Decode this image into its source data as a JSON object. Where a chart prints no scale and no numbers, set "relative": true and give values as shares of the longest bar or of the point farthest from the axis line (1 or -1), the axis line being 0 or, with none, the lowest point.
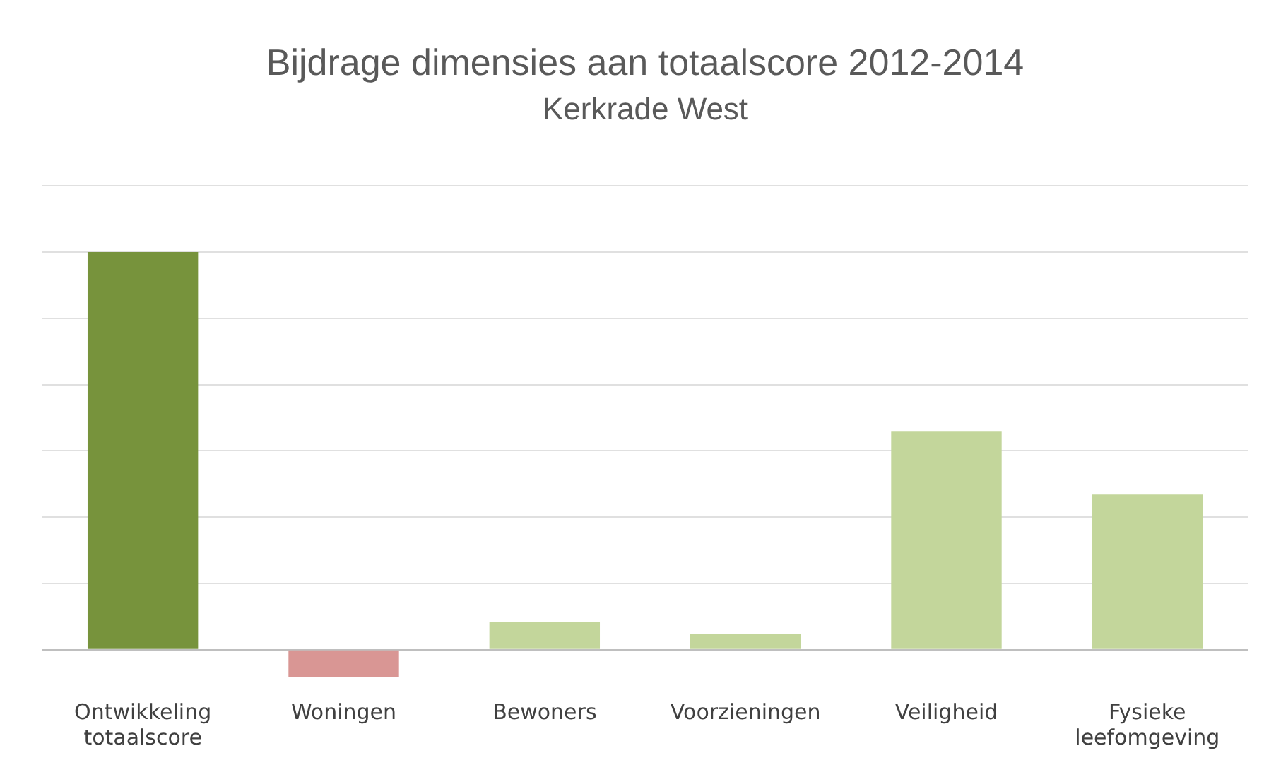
{
  "chart_data": {
    "type": "bar",
    "title": "Bijdrage dimensies aan totaalscore 2012-2014",
    "subtitle": "Kerkrade West",
    "categories": [
      "Ontwikkeling totaalscore",
      "Woningen",
      "Bewoners",
      "Voorzieningen",
      "Veiligheid",
      "Fysieke leefomgeving"
    ],
    "values": [
      1,
      -0.07,
      0.07,
      0.04,
      0.55,
      0.39
    ],
    "colors": [
      "#77933c",
      "#d99694",
      "#c3d69b",
      "#c3d69b",
      "#c3d69b",
      "#c3d69b"
    ],
    "relative": true,
    "grid": "y",
    "legend": false
  }
}
